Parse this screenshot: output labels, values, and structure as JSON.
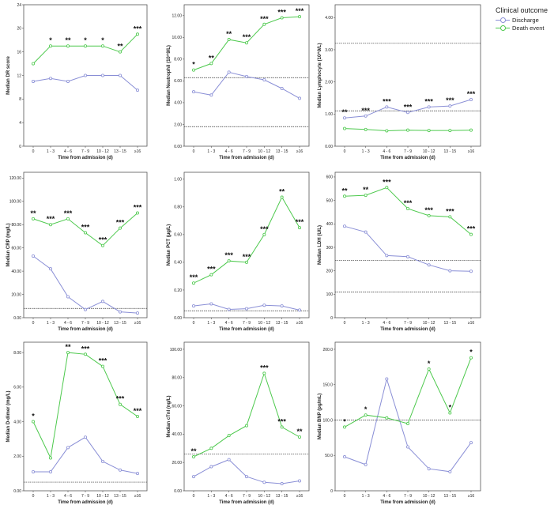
{
  "colors": {
    "discharge": "#8a8fd6",
    "death": "#4dc94d",
    "reference": "#333333",
    "frame": "#555555"
  },
  "legend": {
    "title": "Clinical outcome",
    "discharge_label": "Discharge",
    "death_label": "Death event"
  },
  "chart_data": [
    {
      "type": "line",
      "ylabel": "Median DR score",
      "xlabel": "Time from admission (d)",
      "categories": [
        "0",
        "1 - 3",
        "4 - 6",
        "7 - 9",
        "10 - 12",
        "13 - 15",
        "≥16"
      ],
      "ylim": [
        0,
        24
      ],
      "yticks": [
        "0",
        "4",
        "8",
        "12",
        "16",
        "20",
        "24"
      ],
      "series": [
        {
          "name": "Discharge",
          "values": [
            11,
            11.5,
            11,
            12,
            12,
            12,
            9.5
          ]
        },
        {
          "name": "Death event",
          "values": [
            14,
            17,
            17,
            17,
            17,
            16,
            19
          ]
        }
      ],
      "reference_lines": [],
      "significance": [
        "",
        "*",
        "**",
        "*",
        "*",
        "**",
        "***"
      ]
    },
    {
      "type": "line",
      "ylabel": "Median Neutrophil (10^9/L)",
      "xlabel": "Time from admission (d)",
      "categories": [
        "0",
        "1 - 3",
        "4 - 6",
        "7 - 9",
        "10 - 12",
        "13 - 15",
        "≥16"
      ],
      "ylim": [
        0,
        13
      ],
      "yticks": [
        "0.00",
        "2.00",
        "4.00",
        "6.00",
        "8.00",
        "10.00",
        "12.00"
      ],
      "series": [
        {
          "name": "Discharge",
          "values": [
            5.0,
            4.7,
            6.8,
            6.4,
            6.1,
            5.3,
            4.4
          ]
        },
        {
          "name": "Death event",
          "values": [
            7.0,
            7.6,
            9.8,
            9.5,
            11.2,
            11.8,
            11.9
          ]
        }
      ],
      "reference_lines": [
        6.3,
        1.8
      ],
      "significance": [
        "*",
        "**",
        "**",
        "***",
        "***",
        "***",
        "***"
      ]
    },
    {
      "type": "line",
      "ylabel": "Median Lymphocyte (10^9/L)",
      "xlabel": "Time from admission (d)",
      "categories": [
        "0",
        "1 - 3",
        "4 - 6",
        "7 - 9",
        "10 - 12",
        "13 - 15",
        "≥16"
      ],
      "ylim": [
        0,
        4.4
      ],
      "yticks": [
        "0.00",
        "1.00",
        "2.00",
        "3.00",
        "4.00"
      ],
      "series": [
        {
          "name": "Discharge",
          "values": [
            0.88,
            0.94,
            1.22,
            1.05,
            1.22,
            1.25,
            1.45
          ]
        },
        {
          "name": "Death event",
          "values": [
            0.55,
            0.52,
            0.48,
            0.5,
            0.49,
            0.49,
            0.5
          ]
        }
      ],
      "reference_lines": [
        3.2,
        1.1
      ],
      "significance": [
        "**",
        "***",
        "***",
        "***",
        "***",
        "***",
        "***"
      ]
    },
    {
      "type": "line",
      "ylabel": "Median CRP (mg/L)",
      "xlabel": "Time from admission (d)",
      "categories": [
        "0",
        "1 - 3",
        "4 - 6",
        "7 - 9",
        "10 - 12",
        "13 - 15",
        "≥16"
      ],
      "ylim": [
        0,
        125
      ],
      "yticks": [
        "0.00",
        "20.00",
        "40.00",
        "60.00",
        "80.00",
        "100.00",
        "120.00"
      ],
      "series": [
        {
          "name": "Discharge",
          "values": [
            53,
            42,
            18,
            7,
            14,
            5,
            4
          ]
        },
        {
          "name": "Death event",
          "values": [
            85,
            80,
            85,
            73,
            62,
            77,
            90
          ]
        }
      ],
      "reference_lines": [
        8
      ],
      "significance": [
        "**",
        "***",
        "***",
        "***",
        "***",
        "***",
        "***"
      ]
    },
    {
      "type": "line",
      "ylabel": "Median PCT (µg/L)",
      "xlabel": "Time from admission (d)",
      "categories": [
        "0",
        "1 - 3",
        "4 - 6",
        "7 - 9",
        "10 - 12",
        "13 - 15",
        "≥16"
      ],
      "ylim": [
        0,
        1.05
      ],
      "yticks": [
        "0.00",
        "0.20",
        "0.40",
        "0.60",
        "0.80",
        "1.00"
      ],
      "series": [
        {
          "name": "Discharge",
          "values": [
            0.085,
            0.1,
            0.06,
            0.065,
            0.09,
            0.085,
            0.055
          ]
        },
        {
          "name": "Death event",
          "values": [
            0.25,
            0.31,
            0.41,
            0.4,
            0.6,
            0.87,
            0.65
          ]
        }
      ],
      "reference_lines": [
        0.05
      ],
      "significance": [
        "***",
        "***",
        "***",
        "***",
        "***",
        "**",
        "***"
      ]
    },
    {
      "type": "line",
      "ylabel": "Median LDH (U/L)",
      "xlabel": "Time from admission (d)",
      "categories": [
        "0",
        "1 - 3",
        "4 - 6",
        "7 - 9",
        "10 - 12",
        "13 - 15",
        "≥16"
      ],
      "ylim": [
        0,
        620
      ],
      "yticks": [
        "0",
        "100",
        "200",
        "300",
        "400",
        "500",
        "600"
      ],
      "series": [
        {
          "name": "Discharge",
          "values": [
            390,
            365,
            265,
            260,
            225,
            200,
            198
          ]
        },
        {
          "name": "Death event",
          "values": [
            518,
            522,
            555,
            465,
            435,
            430,
            355
          ]
        }
      ],
      "reference_lines": [
        245,
        109
      ],
      "significance": [
        "**",
        "**",
        "***",
        "***",
        "***",
        "***",
        "***"
      ]
    },
    {
      "type": "line",
      "ylabel": "Median D-dimer (mg/L)",
      "xlabel": "Time from admission (d)",
      "categories": [
        "0",
        "1 - 3",
        "4 - 6",
        "7 - 9",
        "10 - 12",
        "13 - 15",
        "≥16"
      ],
      "ylim": [
        0,
        8.6
      ],
      "yticks": [
        "0.00",
        "2.00",
        "4.00",
        "6.00",
        "8.00"
      ],
      "series": [
        {
          "name": "Discharge",
          "values": [
            1.1,
            1.1,
            2.5,
            3.1,
            1.7,
            1.2,
            1.0
          ]
        },
        {
          "name": "Death event",
          "values": [
            4.0,
            1.9,
            8.0,
            7.9,
            7.2,
            5.0,
            4.3
          ]
        }
      ],
      "reference_lines": [
        0.5
      ],
      "significance": [
        "*",
        "",
        "**",
        "***",
        "***",
        "***",
        "***"
      ]
    },
    {
      "type": "line",
      "ylabel": "Median cTnI (ng/L)",
      "xlabel": "Time from admission (d)",
      "categories": [
        "0",
        "1 - 3",
        "4 - 6",
        "7 - 9",
        "10 - 12",
        "13 - 15",
        "≥16"
      ],
      "ylim": [
        0,
        105
      ],
      "yticks": [
        "0.00",
        "20.00",
        "40.00",
        "60.00",
        "80.00",
        "100.00"
      ],
      "series": [
        {
          "name": "Discharge",
          "values": [
            10,
            17,
            22,
            10,
            6,
            5,
            7
          ]
        },
        {
          "name": "Death event",
          "values": [
            24,
            30,
            39,
            46,
            83,
            45,
            38
          ]
        }
      ],
      "reference_lines": [
        26
      ],
      "significance": [
        "**",
        "",
        "",
        "",
        "***",
        "***",
        "**"
      ]
    },
    {
      "type": "line",
      "ylabel": "Median BNP (pg/mL)",
      "xlabel": "Time from admission (d)",
      "categories": [
        "0",
        "1 - 3",
        "4 - 6",
        "7 - 9",
        "10 - 12",
        "13 - 15",
        "≥16"
      ],
      "ylim": [
        0,
        210
      ],
      "yticks": [
        "0",
        "50.0",
        "100.0",
        "150.0",
        "200.0"
      ],
      "series": [
        {
          "name": "Discharge",
          "values": [
            48,
            37,
            158,
            62,
            31,
            27,
            68
          ]
        },
        {
          "name": "Death event",
          "values": [
            90,
            107,
            103,
            95,
            172,
            110,
            188
          ]
        }
      ],
      "reference_lines": [
        100
      ],
      "significance": [
        "*",
        "*",
        "",
        "",
        "*",
        "*",
        "*"
      ]
    }
  ]
}
